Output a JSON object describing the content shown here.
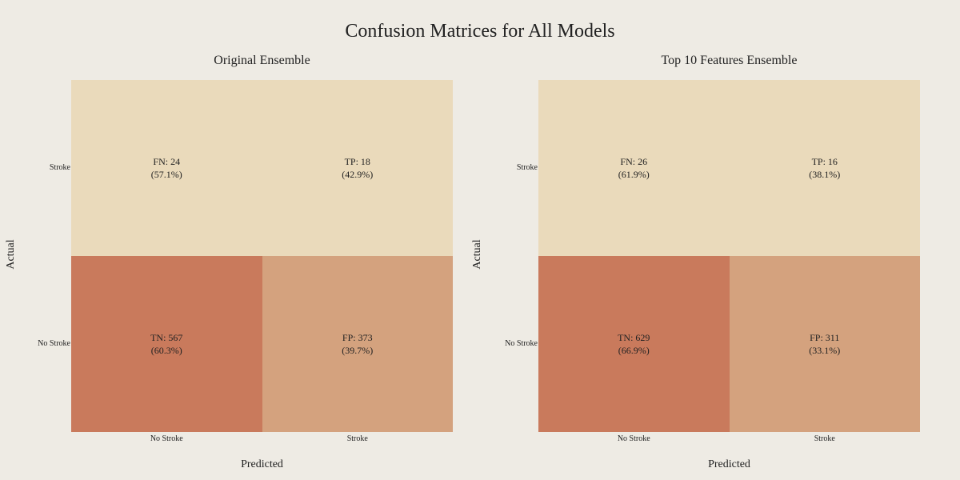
{
  "title": "Confusion Matrices for All Models",
  "colors": {
    "background": "#EEEBE4",
    "light": "#EADABB",
    "mid": "#D4A27E",
    "dark": "#C97A5C"
  },
  "chart_data": [
    {
      "type": "heatmap",
      "title": "Original Ensemble",
      "xlabel": "Predicted",
      "ylabel": "Actual",
      "x_categories": [
        "No Stroke",
        "Stroke"
      ],
      "y_categories": [
        "Stroke",
        "No Stroke"
      ],
      "cells": [
        {
          "actual": "Stroke",
          "predicted": "No Stroke",
          "label": "FN: 24",
          "pct": "(57.1%)",
          "value": 24
        },
        {
          "actual": "Stroke",
          "predicted": "Stroke",
          "label": "TP: 18",
          "pct": "(42.9%)",
          "value": 18
        },
        {
          "actual": "No Stroke",
          "predicted": "No Stroke",
          "label": "TN: 567",
          "pct": "(60.3%)",
          "value": 567
        },
        {
          "actual": "No Stroke",
          "predicted": "Stroke",
          "label": "FP: 373",
          "pct": "(39.7%)",
          "value": 373
        }
      ]
    },
    {
      "type": "heatmap",
      "title": "Top 10 Features Ensemble",
      "xlabel": "Predicted",
      "ylabel": "Actual",
      "x_categories": [
        "No Stroke",
        "Stroke"
      ],
      "y_categories": [
        "Stroke",
        "No Stroke"
      ],
      "cells": [
        {
          "actual": "Stroke",
          "predicted": "No Stroke",
          "label": "FN: 26",
          "pct": "(61.9%)",
          "value": 26
        },
        {
          "actual": "Stroke",
          "predicted": "Stroke",
          "label": "TP: 16",
          "pct": "(38.1%)",
          "value": 16
        },
        {
          "actual": "No Stroke",
          "predicted": "No Stroke",
          "label": "TN: 629",
          "pct": "(66.9%)",
          "value": 629
        },
        {
          "actual": "No Stroke",
          "predicted": "Stroke",
          "label": "FP: 311",
          "pct": "(33.1%)",
          "value": 311
        }
      ]
    }
  ]
}
